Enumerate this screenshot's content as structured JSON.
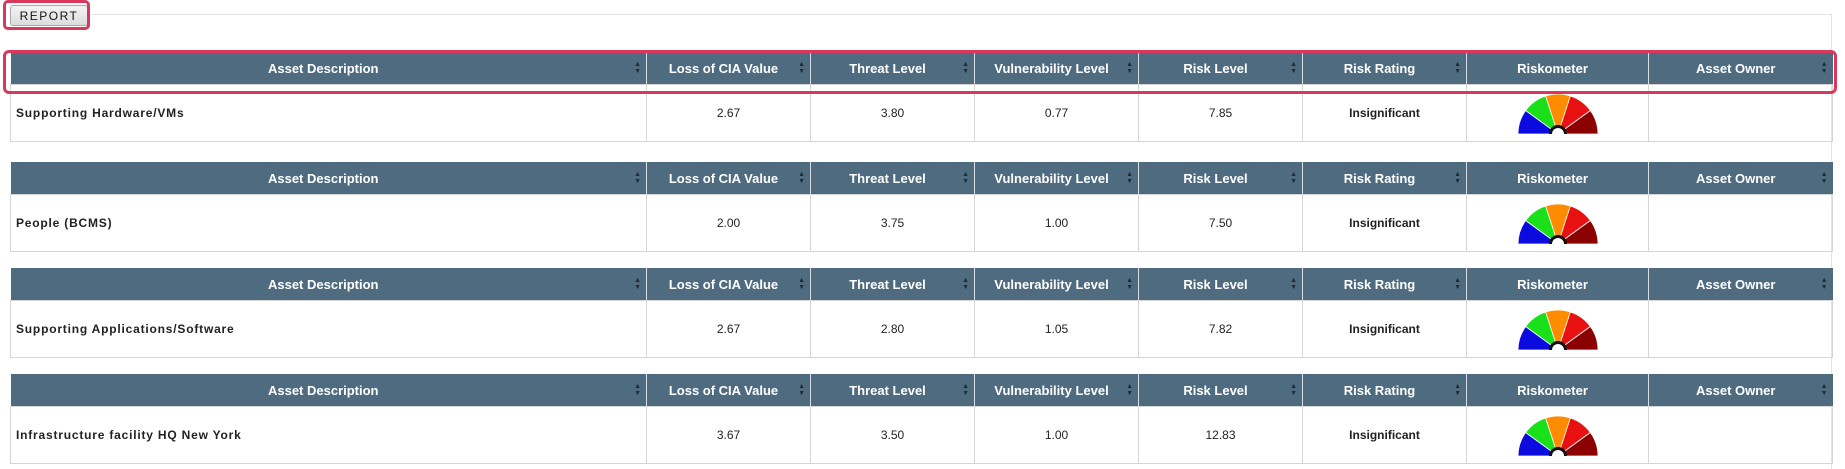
{
  "report_button": {
    "label": "REPORT"
  },
  "columns": [
    {
      "label": "Asset Description",
      "sortable": true
    },
    {
      "label": "Loss of CIA Value",
      "sortable": true
    },
    {
      "label": "Threat Level",
      "sortable": true
    },
    {
      "label": "Vulnerability Level",
      "sortable": true
    },
    {
      "label": "Risk Level",
      "sortable": true
    },
    {
      "label": "Risk Rating",
      "sortable": true
    },
    {
      "label": "Riskometer",
      "sortable": false
    },
    {
      "label": "Asset Owner",
      "sortable": true
    }
  ],
  "assets": [
    {
      "description": "Supporting Hardware/VMs",
      "cia_value": "2.67",
      "threat_level": "3.80",
      "vulnerability_level": "0.77",
      "risk_level": "7.85",
      "risk_rating": "Insignificant",
      "asset_owner": ""
    },
    {
      "description": "People (BCMS)",
      "cia_value": "2.00",
      "threat_level": "3.75",
      "vulnerability_level": "1.00",
      "risk_level": "7.50",
      "risk_rating": "Insignificant",
      "asset_owner": ""
    },
    {
      "description": "Supporting Applications/Software",
      "cia_value": "2.67",
      "threat_level": "2.80",
      "vulnerability_level": "1.05",
      "risk_level": "7.82",
      "risk_rating": "Insignificant",
      "asset_owner": ""
    },
    {
      "description": "Infrastructure facility HQ New York",
      "cia_value": "3.67",
      "threat_level": "3.50",
      "vulnerability_level": "1.00",
      "risk_level": "12.83",
      "risk_rating": "Insignificant",
      "asset_owner": ""
    }
  ],
  "riskometer_colors": [
    "#0b0be0",
    "#19e019",
    "#ff8c00",
    "#e81010",
    "#8b0000"
  ],
  "colors": {
    "header_bg": "#4f6b80",
    "rating_text": "#1d0fd6",
    "highlight": "#d9375b"
  }
}
